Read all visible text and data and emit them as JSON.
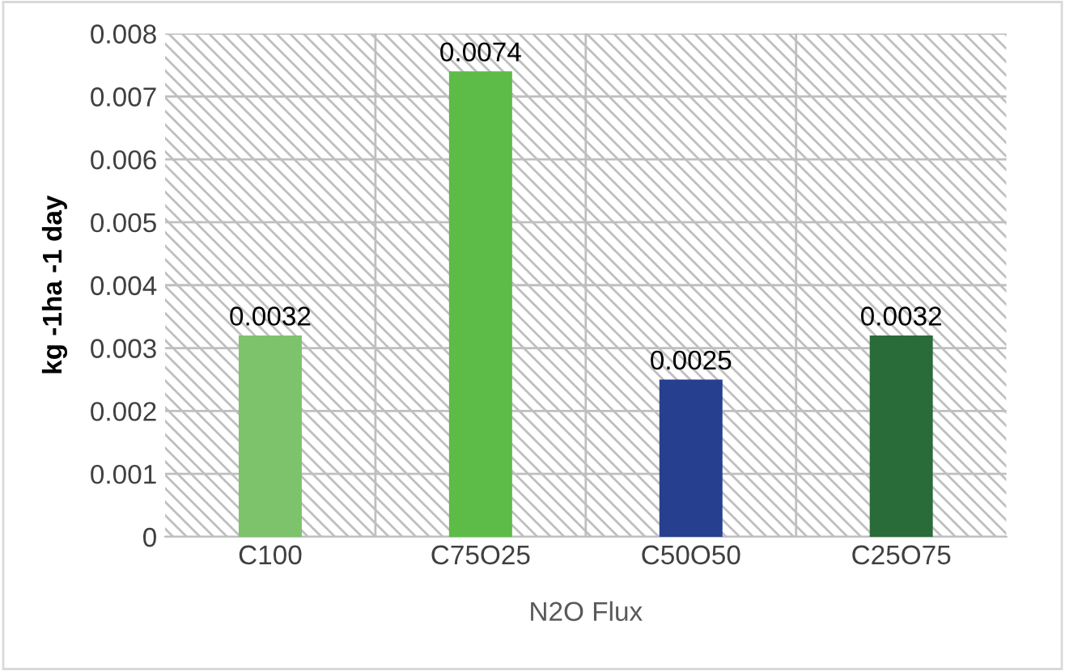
{
  "chart_data": {
    "type": "bar",
    "xlabel": "N2O Flux",
    "ylabel": "kg -1ha -1 day",
    "categories": [
      "C100",
      "C75O25",
      "C50O50",
      "C25O75"
    ],
    "values": [
      0.0032,
      0.0074,
      0.0025,
      0.0032
    ],
    "colors": [
      "#7dc36b",
      "#5dbb47",
      "#263f8f",
      "#2a6b3a"
    ],
    "ylim": [
      0,
      0.008
    ],
    "yticks": [
      {
        "value": 0,
        "label": "0"
      },
      0.001,
      0.002,
      0.003,
      0.004,
      0.005,
      0.006,
      0.007,
      0.008
    ],
    "grid": true,
    "data_labels": true
  }
}
